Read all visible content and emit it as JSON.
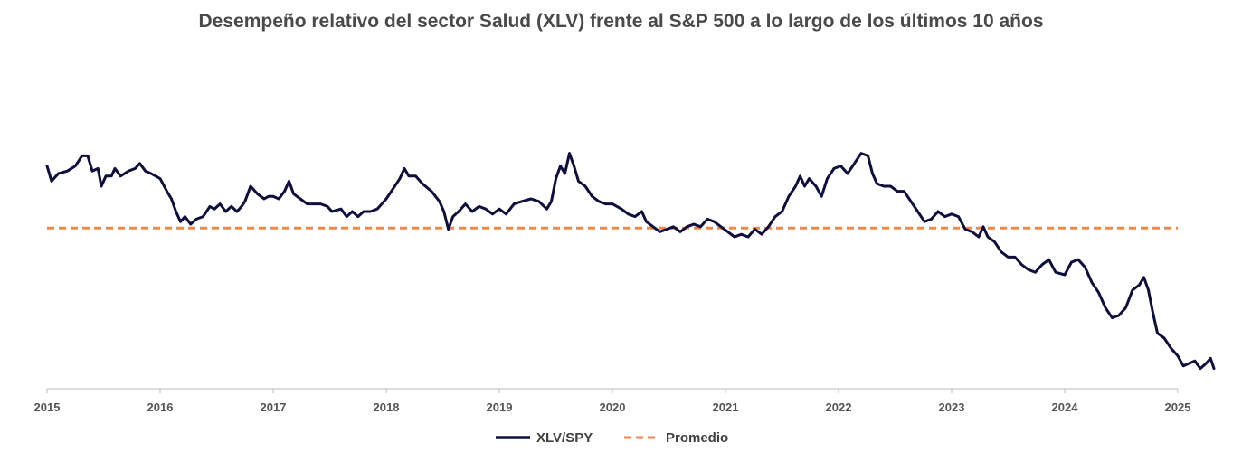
{
  "chart_data": {
    "type": "line",
    "title": "Desempeño relativo del sector Salud (XLV) frente al S&P 500 a lo largo de los últimos 10 años",
    "xlabel": "",
    "ylabel": "",
    "x_range": [
      2015,
      2025
    ],
    "ylim": [
      0.0,
      1.0
    ],
    "x_ticks": [
      "2015",
      "2016",
      "2017",
      "2018",
      "2019",
      "2020",
      "2021",
      "2022",
      "2023",
      "2024",
      "2025"
    ],
    "grid": false,
    "legend_position": "bottom-center",
    "series": [
      {
        "name": "XLV/SPY",
        "color": "#0f0f3d",
        "style": "solid",
        "points": [
          [
            2015.0,
            0.88
          ],
          [
            2015.04,
            0.82
          ],
          [
            2015.1,
            0.85
          ],
          [
            2015.18,
            0.86
          ],
          [
            2015.25,
            0.88
          ],
          [
            2015.31,
            0.92
          ],
          [
            2015.36,
            0.92
          ],
          [
            2015.4,
            0.86
          ],
          [
            2015.45,
            0.87
          ],
          [
            2015.48,
            0.8
          ],
          [
            2015.52,
            0.84
          ],
          [
            2015.57,
            0.84
          ],
          [
            2015.6,
            0.87
          ],
          [
            2015.65,
            0.84
          ],
          [
            2015.72,
            0.86
          ],
          [
            2015.78,
            0.87
          ],
          [
            2015.82,
            0.89
          ],
          [
            2015.87,
            0.86
          ],
          [
            2015.92,
            0.85
          ],
          [
            2016.0,
            0.83
          ],
          [
            2016.06,
            0.78
          ],
          [
            2016.1,
            0.75
          ],
          [
            2016.14,
            0.7
          ],
          [
            2016.18,
            0.66
          ],
          [
            2016.22,
            0.68
          ],
          [
            2016.27,
            0.65
          ],
          [
            2016.32,
            0.67
          ],
          [
            2016.38,
            0.68
          ],
          [
            2016.44,
            0.72
          ],
          [
            2016.48,
            0.71
          ],
          [
            2016.53,
            0.73
          ],
          [
            2016.58,
            0.7
          ],
          [
            2016.63,
            0.72
          ],
          [
            2016.68,
            0.7
          ],
          [
            2016.72,
            0.72
          ],
          [
            2016.75,
            0.74
          ],
          [
            2016.8,
            0.8
          ],
          [
            2016.86,
            0.77
          ],
          [
            2016.92,
            0.75
          ],
          [
            2016.96,
            0.76
          ],
          [
            2017.0,
            0.76
          ],
          [
            2017.05,
            0.75
          ],
          [
            2017.1,
            0.78
          ],
          [
            2017.14,
            0.82
          ],
          [
            2017.18,
            0.77
          ],
          [
            2017.24,
            0.75
          ],
          [
            2017.3,
            0.73
          ],
          [
            2017.36,
            0.73
          ],
          [
            2017.42,
            0.73
          ],
          [
            2017.48,
            0.72
          ],
          [
            2017.52,
            0.7
          ],
          [
            2017.6,
            0.71
          ],
          [
            2017.65,
            0.68
          ],
          [
            2017.7,
            0.7
          ],
          [
            2017.75,
            0.68
          ],
          [
            2017.8,
            0.7
          ],
          [
            2017.86,
            0.7
          ],
          [
            2017.92,
            0.71
          ],
          [
            2018.0,
            0.75
          ],
          [
            2018.06,
            0.79
          ],
          [
            2018.12,
            0.83
          ],
          [
            2018.16,
            0.87
          ],
          [
            2018.2,
            0.84
          ],
          [
            2018.26,
            0.84
          ],
          [
            2018.32,
            0.81
          ],
          [
            2018.4,
            0.78
          ],
          [
            2018.47,
            0.74
          ],
          [
            2018.51,
            0.7
          ],
          [
            2018.55,
            0.63
          ],
          [
            2018.59,
            0.68
          ],
          [
            2018.64,
            0.7
          ],
          [
            2018.7,
            0.73
          ],
          [
            2018.76,
            0.7
          ],
          [
            2018.82,
            0.72
          ],
          [
            2018.88,
            0.71
          ],
          [
            2018.94,
            0.69
          ],
          [
            2019.0,
            0.71
          ],
          [
            2019.06,
            0.69
          ],
          [
            2019.13,
            0.73
          ],
          [
            2019.2,
            0.74
          ],
          [
            2019.28,
            0.75
          ],
          [
            2019.35,
            0.74
          ],
          [
            2019.42,
            0.71
          ],
          [
            2019.46,
            0.74
          ],
          [
            2019.5,
            0.83
          ],
          [
            2019.54,
            0.88
          ],
          [
            2019.58,
            0.85
          ],
          [
            2019.62,
            0.93
          ],
          [
            2019.66,
            0.88
          ],
          [
            2019.7,
            0.82
          ],
          [
            2019.76,
            0.8
          ],
          [
            2019.82,
            0.76
          ],
          [
            2019.88,
            0.74
          ],
          [
            2019.94,
            0.73
          ],
          [
            2020.0,
            0.73
          ],
          [
            2020.08,
            0.71
          ],
          [
            2020.14,
            0.69
          ],
          [
            2020.2,
            0.68
          ],
          [
            2020.26,
            0.7
          ],
          [
            2020.3,
            0.66
          ],
          [
            2020.36,
            0.64
          ],
          [
            2020.42,
            0.62
          ],
          [
            2020.48,
            0.63
          ],
          [
            2020.54,
            0.64
          ],
          [
            2020.6,
            0.62
          ],
          [
            2020.66,
            0.64
          ],
          [
            2020.72,
            0.65
          ],
          [
            2020.78,
            0.64
          ],
          [
            2020.84,
            0.67
          ],
          [
            2020.9,
            0.66
          ],
          [
            2020.96,
            0.64
          ],
          [
            2021.02,
            0.62
          ],
          [
            2021.08,
            0.6
          ],
          [
            2021.14,
            0.61
          ],
          [
            2021.2,
            0.6
          ],
          [
            2021.26,
            0.63
          ],
          [
            2021.32,
            0.61
          ],
          [
            2021.38,
            0.64
          ],
          [
            2021.44,
            0.68
          ],
          [
            2021.5,
            0.7
          ],
          [
            2021.56,
            0.76
          ],
          [
            2021.62,
            0.8
          ],
          [
            2021.66,
            0.84
          ],
          [
            2021.7,
            0.8
          ],
          [
            2021.74,
            0.83
          ],
          [
            2021.8,
            0.8
          ],
          [
            2021.85,
            0.76
          ],
          [
            2021.9,
            0.83
          ],
          [
            2021.96,
            0.87
          ],
          [
            2022.02,
            0.88
          ],
          [
            2022.08,
            0.85
          ],
          [
            2022.14,
            0.89
          ],
          [
            2022.2,
            0.93
          ],
          [
            2022.26,
            0.92
          ],
          [
            2022.3,
            0.85
          ],
          [
            2022.34,
            0.81
          ],
          [
            2022.4,
            0.8
          ],
          [
            2022.46,
            0.8
          ],
          [
            2022.52,
            0.78
          ],
          [
            2022.58,
            0.78
          ],
          [
            2022.64,
            0.74
          ],
          [
            2022.7,
            0.7
          ],
          [
            2022.76,
            0.66
          ],
          [
            2022.82,
            0.67
          ],
          [
            2022.88,
            0.7
          ],
          [
            2022.94,
            0.68
          ],
          [
            2023.0,
            0.69
          ],
          [
            2023.06,
            0.68
          ],
          [
            2023.12,
            0.63
          ],
          [
            2023.18,
            0.62
          ],
          [
            2023.24,
            0.6
          ],
          [
            2023.28,
            0.64
          ],
          [
            2023.32,
            0.6
          ],
          [
            2023.38,
            0.58
          ],
          [
            2023.44,
            0.54
          ],
          [
            2023.5,
            0.52
          ],
          [
            2023.56,
            0.52
          ],
          [
            2023.62,
            0.49
          ],
          [
            2023.68,
            0.47
          ],
          [
            2023.74,
            0.46
          ],
          [
            2023.8,
            0.49
          ],
          [
            2023.86,
            0.51
          ],
          [
            2023.92,
            0.46
          ],
          [
            2024.0,
            0.45
          ],
          [
            2024.06,
            0.5
          ],
          [
            2024.12,
            0.51
          ],
          [
            2024.18,
            0.48
          ],
          [
            2024.24,
            0.42
          ],
          [
            2024.3,
            0.38
          ],
          [
            2024.36,
            0.32
          ],
          [
            2024.42,
            0.28
          ],
          [
            2024.48,
            0.29
          ],
          [
            2024.54,
            0.32
          ],
          [
            2024.6,
            0.39
          ],
          [
            2024.66,
            0.41
          ],
          [
            2024.7,
            0.44
          ],
          [
            2024.74,
            0.39
          ],
          [
            2024.78,
            0.3
          ],
          [
            2024.82,
            0.22
          ],
          [
            2024.88,
            0.2
          ],
          [
            2024.94,
            0.16
          ],
          [
            2025.0,
            0.13
          ],
          [
            2025.05,
            0.09
          ],
          [
            2025.1,
            0.1
          ],
          [
            2025.15,
            0.11
          ],
          [
            2025.2,
            0.08
          ],
          [
            2025.25,
            0.1
          ],
          [
            2025.29,
            0.12
          ],
          [
            2025.32,
            0.08
          ]
        ]
      },
      {
        "name": "Promedio",
        "color": "#f0884a",
        "style": "dashed",
        "points": [
          [
            2015.0,
            0.635
          ],
          [
            2025.0,
            0.635
          ]
        ]
      }
    ]
  }
}
